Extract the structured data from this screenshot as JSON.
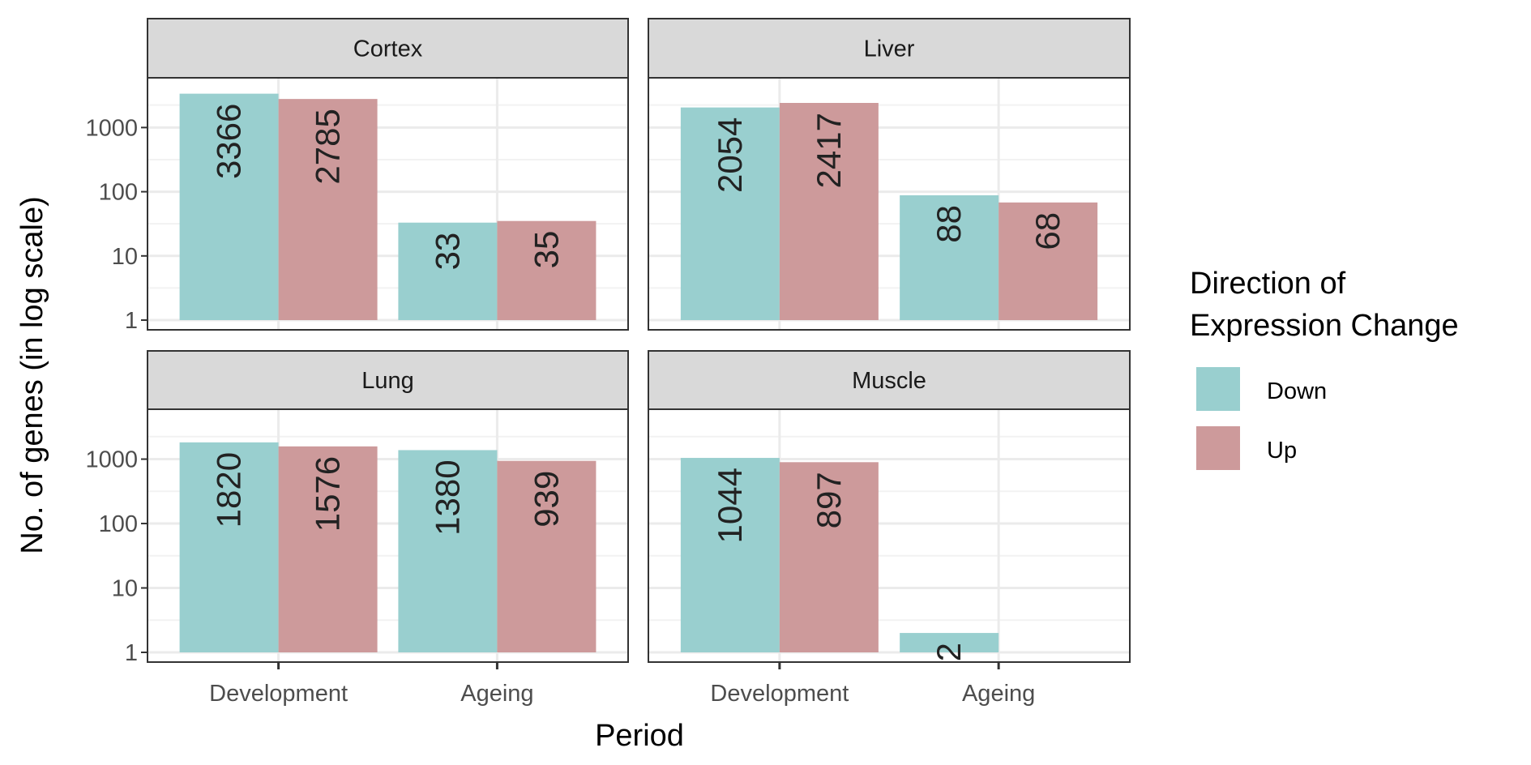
{
  "chart_data": {
    "type": "bar",
    "layout": "faceted 2x2 grouped bar chart",
    "y_scale": "log10",
    "ylim": [
      1,
      5000
    ],
    "y_ticks": [
      1,
      10,
      100,
      1000
    ],
    "y_tick_labels": [
      "1",
      "10",
      "100",
      "1000"
    ],
    "xlabel": "Period",
    "ylabel": "No. of genes (in log scale)",
    "categories": [
      "Development",
      "Ageing"
    ],
    "legend": {
      "title_line1": "Direction of",
      "title_line2": "Expression Change",
      "placement": "right",
      "entries": [
        {
          "name": "Down",
          "color": "#99CFCF"
        },
        {
          "name": "Up",
          "color": "#CD9A9B"
        }
      ]
    },
    "grid": true,
    "panels": [
      {
        "title": "Cortex",
        "series": [
          {
            "name": "Down",
            "values": [
              3366,
              33
            ]
          },
          {
            "name": "Up",
            "values": [
              2785,
              35
            ]
          }
        ]
      },
      {
        "title": "Liver",
        "series": [
          {
            "name": "Down",
            "values": [
              2054,
              88
            ]
          },
          {
            "name": "Up",
            "values": [
              2417,
              68
            ]
          }
        ]
      },
      {
        "title": "Lung",
        "series": [
          {
            "name": "Down",
            "values": [
              1820,
              1380
            ]
          },
          {
            "name": "Up",
            "values": [
              1576,
              939
            ]
          }
        ]
      },
      {
        "title": "Muscle",
        "series": [
          {
            "name": "Down",
            "values": [
              1044,
              2
            ]
          },
          {
            "name": "Up",
            "values": [
              897,
              null
            ]
          }
        ]
      }
    ]
  },
  "colors": {
    "strip_fill": "#D9D9D9",
    "panel_border": "#333333",
    "grid_major": "#EBEBEB",
    "grid_minor": "#F2F2F2"
  }
}
